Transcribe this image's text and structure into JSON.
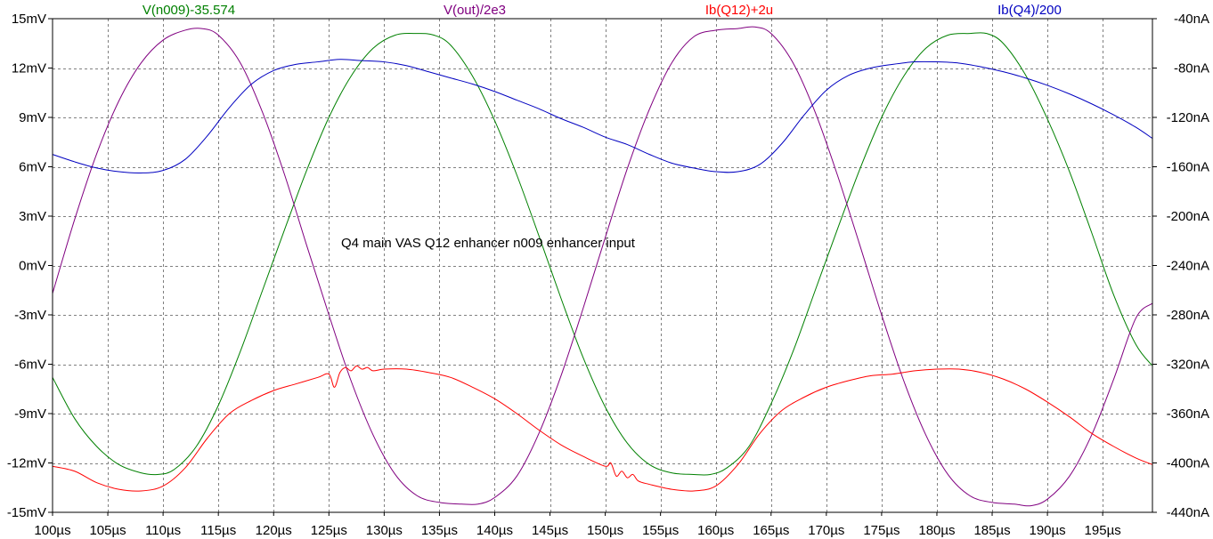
{
  "chart_data": {
    "type": "line",
    "title": "",
    "annotation": "Q4 main VAS  Q12 enhancer  n009 enhancer input",
    "grid": true,
    "x": {
      "label": "",
      "unit": "µs",
      "range": [
        100,
        199.5
      ],
      "ticks": [
        100,
        105,
        110,
        115,
        120,
        125,
        130,
        135,
        140,
        145,
        150,
        155,
        160,
        165,
        170,
        175,
        180,
        185,
        190,
        195
      ],
      "tick_labels": [
        "100µs",
        "105µs",
        "110µs",
        "115µs",
        "120µs",
        "125µs",
        "130µs",
        "135µs",
        "140µs",
        "145µs",
        "150µs",
        "155µs",
        "160µs",
        "165µs",
        "170µs",
        "175µs",
        "180µs",
        "185µs",
        "190µs",
        "195µs"
      ]
    },
    "y_left": {
      "label": "",
      "unit": "mV",
      "range": [
        -15,
        15
      ],
      "ticks": [
        15,
        12,
        9,
        6,
        3,
        0,
        -3,
        -6,
        -9,
        -12,
        -15
      ],
      "tick_labels": [
        "15mV",
        "12mV",
        "9mV",
        "6mV",
        "3mV",
        "0mV",
        "-3mV",
        "-6mV",
        "-9mV",
        "-12mV",
        "-15mV"
      ]
    },
    "y_right": {
      "label": "",
      "unit": "nA",
      "range": [
        -440,
        -40
      ],
      "ticks": [
        -40,
        -80,
        -120,
        -160,
        -200,
        -240,
        -280,
        -320,
        -360,
        -400,
        -440
      ],
      "tick_labels": [
        "-40nA",
        "-80nA",
        "-120nA",
        "-160nA",
        "-200nA",
        "-240nA",
        "-280nA",
        "-320nA",
        "-360nA",
        "-400nA",
        "-440nA"
      ]
    },
    "series": [
      {
        "name": "V(n009)-35.574",
        "axis": "left",
        "color": "#008000",
        "x": [
          100,
          102,
          104,
          106,
          108,
          109.5,
          111,
          113,
          115,
          117,
          119,
          121,
          123,
          125,
          127,
          129,
          131,
          133,
          134.5,
          136,
          138,
          140,
          142,
          144,
          146,
          148,
          150,
          152,
          154,
          156,
          158,
          159.5,
          161,
          163,
          165,
          167,
          169,
          171,
          173,
          175,
          177,
          179,
          181,
          183,
          184.5,
          186,
          188,
          190,
          192,
          194,
          196,
          198,
          199.5
        ],
        "values": [
          -6.8,
          -9.3,
          -11.0,
          -12.1,
          -12.6,
          -12.7,
          -12.4,
          -11.0,
          -8.5,
          -5.2,
          -1.5,
          2.2,
          5.8,
          9.0,
          11.5,
          13.2,
          14.0,
          14.1,
          14.0,
          13.4,
          11.5,
          8.8,
          5.5,
          1.8,
          -2.0,
          -5.6,
          -8.6,
          -10.8,
          -12.1,
          -12.6,
          -12.7,
          -12.7,
          -12.3,
          -11.0,
          -8.4,
          -5.2,
          -1.5,
          2.2,
          5.8,
          9.0,
          11.5,
          13.2,
          14.0,
          14.1,
          14.1,
          13.5,
          11.6,
          8.9,
          5.7,
          2.0,
          -1.8,
          -4.8,
          -6.1
        ]
      },
      {
        "name": "V(out)/2e3",
        "axis": "left",
        "color": "#800080",
        "x": [
          100,
          102,
          104,
          106,
          108,
          110,
          112,
          113.5,
          115,
          117,
          119,
          121,
          123,
          125,
          127,
          129,
          131,
          133,
          135,
          137,
          138.5,
          140,
          142,
          144,
          146,
          148,
          150,
          152,
          154,
          156,
          158,
          160,
          162,
          163.5,
          165,
          167,
          169,
          171,
          173,
          175,
          177,
          179,
          181,
          183,
          185,
          187,
          188.5,
          190,
          192,
          194,
          196,
          198,
          199.5
        ],
        "values": [
          -1.7,
          2.8,
          6.8,
          10.0,
          12.3,
          13.7,
          14.3,
          14.4,
          14.0,
          12.3,
          9.3,
          5.5,
          1.2,
          -3.0,
          -7.0,
          -10.3,
          -12.7,
          -14.0,
          -14.4,
          -14.5,
          -14.5,
          -14.1,
          -12.8,
          -10.2,
          -6.7,
          -2.6,
          1.7,
          5.9,
          9.5,
          12.3,
          13.9,
          14.3,
          14.4,
          14.5,
          14.1,
          12.3,
          9.3,
          5.5,
          1.3,
          -3.0,
          -7.0,
          -10.3,
          -12.7,
          -14.0,
          -14.4,
          -14.5,
          -14.6,
          -14.2,
          -12.8,
          -10.3,
          -6.9,
          -3.2,
          -2.3
        ]
      },
      {
        "name": "Ib(Q12)+2u",
        "axis": "left",
        "color": "#ff0000",
        "x": [
          100,
          102,
          104,
          106,
          108,
          110,
          112,
          114,
          116,
          118,
          120,
          122,
          124,
          125,
          125.5,
          126,
          126.5,
          127,
          127.5,
          128,
          128.5,
          129,
          130,
          132,
          134,
          136,
          138,
          140,
          142,
          144,
          146,
          148,
          150,
          150.5,
          151,
          151.5,
          152,
          152.5,
          153,
          154,
          156,
          158,
          160,
          162,
          164,
          166,
          168,
          170,
          172,
          174,
          176,
          178,
          180,
          182,
          184,
          186,
          188,
          190,
          192,
          194,
          196,
          198,
          199.5
        ],
        "values": [
          -12.2,
          -12.5,
          -13.2,
          -13.6,
          -13.7,
          -13.4,
          -12.3,
          -10.5,
          -9.0,
          -8.2,
          -7.6,
          -7.2,
          -6.8,
          -6.6,
          -7.4,
          -6.5,
          -6.2,
          -6.4,
          -6.1,
          -6.3,
          -6.2,
          -6.4,
          -6.3,
          -6.3,
          -6.5,
          -6.8,
          -7.4,
          -8.1,
          -9.0,
          -10.0,
          -10.9,
          -11.6,
          -12.2,
          -12.0,
          -12.8,
          -12.5,
          -12.9,
          -12.7,
          -13.1,
          -13.3,
          -13.6,
          -13.7,
          -13.4,
          -12.1,
          -10.2,
          -8.8,
          -8.0,
          -7.4,
          -7.0,
          -6.7,
          -6.6,
          -6.4,
          -6.3,
          -6.3,
          -6.5,
          -6.9,
          -7.5,
          -8.3,
          -9.2,
          -10.2,
          -11.0,
          -11.7,
          -12.1
        ]
      },
      {
        "name": "Ib(Q4)/200",
        "axis": "right",
        "color": "#0000c0",
        "x": [
          100,
          102,
          104,
          106,
          108,
          110,
          112,
          114,
          116,
          118,
          120,
          122,
          124,
          126,
          128,
          130,
          132,
          134,
          136,
          138,
          140,
          142,
          144,
          146,
          148,
          150,
          152,
          154,
          156,
          158,
          160,
          162,
          164,
          166,
          168,
          170,
          172,
          174,
          176,
          178,
          180,
          182,
          184,
          186,
          188,
          190,
          192,
          194,
          196,
          198,
          199.5
        ],
        "values": [
          -150,
          -156,
          -161,
          -164,
          -165,
          -163,
          -154,
          -135,
          -112,
          -93,
          -82,
          -77,
          -75,
          -73,
          -74,
          -75,
          -78,
          -83,
          -88,
          -93,
          -99,
          -106,
          -113,
          -121,
          -128,
          -136,
          -142,
          -150,
          -157,
          -161,
          -164,
          -164,
          -158,
          -141,
          -118,
          -98,
          -86,
          -80,
          -77,
          -75,
          -75,
          -76,
          -79,
          -83,
          -88,
          -94,
          -101,
          -109,
          -118,
          -128,
          -137
        ]
      }
    ]
  }
}
